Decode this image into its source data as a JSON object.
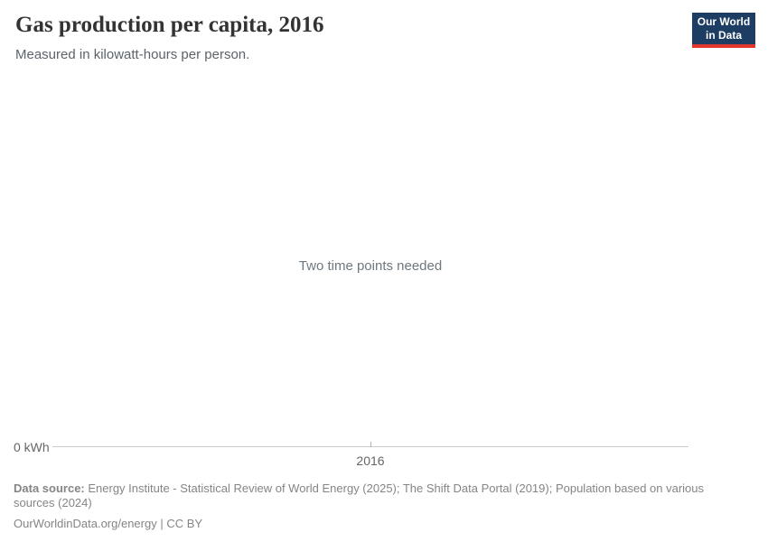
{
  "header": {
    "title": "Gas production per capita, 2016",
    "subtitle": "Measured in kilowatt-hours per person."
  },
  "logo": {
    "line1": "Our World",
    "line2": "in Data"
  },
  "chart": {
    "empty_message": "Two time points needed",
    "y_axis_min_label": "0 kWh",
    "x_tick_label": "2016"
  },
  "footer": {
    "datasource_label": "Data source:",
    "datasource_text": " Energy Institute - Statistical Review of World Energy (2025); The Shift Data Portal (2019); Population based on various sources (2024)",
    "license_url": "OurWorldinData.org/energy",
    "license_separator": " | ",
    "license_text": "CC BY"
  },
  "colors": {
    "logo_bg": "#1d3d63",
    "logo_stripe": "#e0362b",
    "axis_line": "#cccccc",
    "axis_text": "#666666",
    "empty_message_text": "#6e787f",
    "footer_text": "#858585"
  },
  "chart_data": {
    "type": "line",
    "title": "Gas production per capita, 2016",
    "ylabel": "kilowatt-hours per person",
    "xlabel": "",
    "x_ticks": [
      2016
    ],
    "y_axis_start_label": "0 kWh",
    "series": [],
    "annotations": [
      "Two time points needed"
    ]
  }
}
